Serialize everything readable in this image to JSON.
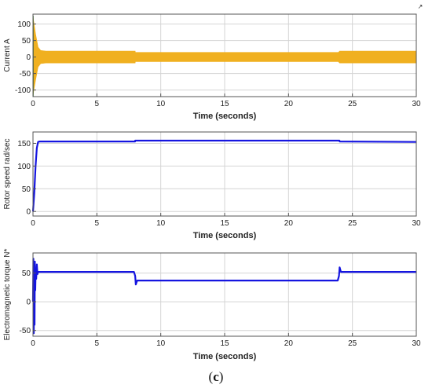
{
  "caption": {
    "open": "(",
    "letter": "c",
    "close": ")"
  },
  "corner_mark": "↗",
  "colors": {
    "current": "#f0b020",
    "current_dark": "#3a7a3a",
    "speed": "#1515e0",
    "torque": "#1515e0",
    "grid": "#d4d4d4",
    "axes": "#555555"
  },
  "chart_data": [
    {
      "type": "line",
      "xlabel": "Time (seconds)",
      "ylabel": "Current A",
      "xlim": [
        0,
        30
      ],
      "ylim": [
        -120,
        130
      ],
      "xticks": [
        0,
        5,
        10,
        15,
        20,
        25,
        30
      ],
      "xtick_labels": [
        "0",
        "5",
        "10",
        "15",
        "20",
        "25",
        "30"
      ],
      "yticks": [
        -100,
        -50,
        0,
        50,
        100
      ],
      "ytick_labels": [
        "-100",
        "-50",
        "0",
        "50",
        "100"
      ],
      "grid": true,
      "series": [
        {
          "envelope": true,
          "x": [
            0,
            0.05,
            0.2,
            0.4,
            0.6,
            1.0,
            8.0,
            8.01,
            23.9,
            24.0,
            30.0
          ],
          "upper": [
            125,
            110,
            70,
            30,
            20,
            18,
            18,
            14,
            14,
            18,
            18
          ],
          "lower": [
            -120,
            -105,
            -70,
            -30,
            -20,
            -18,
            -18,
            -14,
            -14,
            -18,
            -18
          ]
        }
      ]
    },
    {
      "type": "line",
      "xlabel": "Time (seconds)",
      "ylabel": "Rotor speed rad/sec",
      "xlim": [
        0,
        30
      ],
      "ylim": [
        -10,
        175
      ],
      "xticks": [
        0,
        5,
        10,
        15,
        20,
        25,
        30
      ],
      "xtick_labels": [
        "0",
        "5",
        "10",
        "15",
        "20",
        "25",
        "30"
      ],
      "yticks": [
        0,
        50,
        100,
        150
      ],
      "ytick_labels": [
        "0",
        "50",
        "100",
        "150"
      ],
      "grid": true,
      "series": [
        {
          "x": [
            0,
            0.1,
            0.2,
            0.3,
            0.4,
            0.5,
            7.99,
            8.0,
            23.99,
            24.0,
            30.0
          ],
          "y": [
            0,
            40,
            100,
            140,
            153,
            154,
            154,
            156,
            156,
            154,
            153
          ]
        }
      ]
    },
    {
      "type": "line",
      "xlabel": "Time (seconds)",
      "ylabel": "Electromagnetic torque N*",
      "xlim": [
        0,
        30
      ],
      "ylim": [
        -60,
        85
      ],
      "xticks": [
        0,
        5,
        10,
        15,
        20,
        25,
        30
      ],
      "xtick_labels": [
        "0",
        "5",
        "10",
        "15",
        "20",
        "25",
        "30"
      ],
      "yticks": [
        -50,
        0,
        50
      ],
      "ytick_labels": [
        "-50",
        "0",
        "50"
      ],
      "grid": true,
      "series": [
        {
          "x": [
            0,
            0.03,
            0.06,
            0.09,
            0.12,
            0.15,
            0.18,
            0.21,
            0.25,
            0.3,
            0.35,
            0.4,
            0.5,
            7.9,
            8.0,
            8.05,
            8.15,
            23.85,
            23.95,
            24.0,
            24.1,
            30
          ],
          "y": [
            0,
            75,
            -55,
            60,
            -40,
            70,
            20,
            55,
            40,
            65,
            48,
            52,
            52,
            52,
            45,
            30,
            37,
            37,
            45,
            60,
            52,
            52
          ]
        }
      ]
    }
  ]
}
